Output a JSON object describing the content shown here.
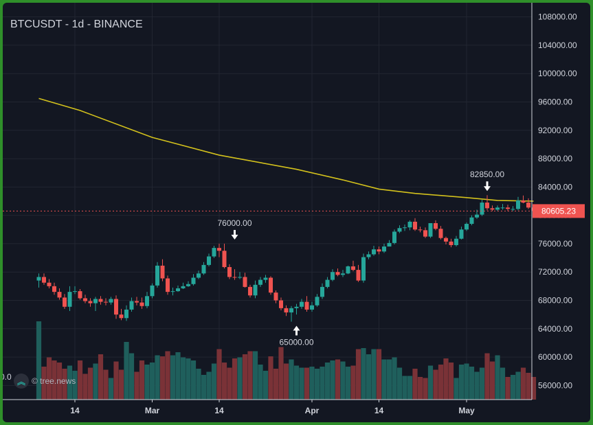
{
  "header": {
    "title": "BTCUSDT - 1d - BINANCE"
  },
  "watermark": {
    "text": "© tree.news",
    "icon": "double-chevron-up-icon"
  },
  "left_clip_text": "0.0",
  "price_badge": {
    "value": "80605.23",
    "color": "#ef5350"
  },
  "colors": {
    "up": "#26a69a",
    "down": "#ef5350",
    "ma": "#d4c21c",
    "background": "#131722",
    "text": "#d1d4dc"
  },
  "chart_data": {
    "type": "candlestick",
    "title": "BTCUSDT - 1d - BINANCE",
    "ylim": [
      54000,
      110000
    ],
    "y_ticks": [
      56000,
      60000,
      64000,
      68000,
      72000,
      76000,
      80000,
      84000,
      88000,
      92000,
      96000,
      100000,
      104000,
      108000
    ],
    "y_tick_labels": [
      "56000.00",
      "60000.00",
      "64000.00",
      "68000.00",
      "72000.00",
      "76000.00",
      "80000.00",
      "84000.00",
      "88000.00",
      "92000.00",
      "96000.00",
      "100000.00",
      "104000.00",
      "108000.00"
    ],
    "x_tick_labels": [
      {
        "label": "14",
        "date": "2025-02-14"
      },
      {
        "label": "Mar",
        "date": "2025-03-01"
      },
      {
        "label": "14",
        "date": "2025-03-14"
      },
      {
        "label": "Apr",
        "date": "2025-04-01"
      },
      {
        "label": "14",
        "date": "2025-04-14"
      },
      {
        "label": "May",
        "date": "2025-05-01"
      }
    ],
    "current_price": 80605.23,
    "annotations": [
      {
        "text": "76000.00",
        "value": 76000,
        "date": "2025-03-17",
        "direction": "down"
      },
      {
        "text": "65000.00",
        "value": 65000,
        "date": "2025-03-29",
        "direction": "up"
      },
      {
        "text": "82850.00",
        "value": 82850,
        "date": "2025-05-05",
        "direction": "down"
      }
    ],
    "series": [
      {
        "name": "",
        "kind": "ohlc",
        "dates": [
          "2025-02-07",
          "2025-02-08",
          "2025-02-09",
          "2025-02-10",
          "2025-02-11",
          "2025-02-12",
          "2025-02-13",
          "2025-02-14",
          "2025-02-15",
          "2025-02-16",
          "2025-02-17",
          "2025-02-18",
          "2025-02-19",
          "2025-02-20",
          "2025-02-21",
          "2025-02-22",
          "2025-02-23",
          "2025-02-24",
          "2025-02-25",
          "2025-02-26",
          "2025-02-27",
          "2025-02-28",
          "2025-03-01",
          "2025-03-02",
          "2025-03-03",
          "2025-03-04",
          "2025-03-05",
          "2025-03-06",
          "2025-03-07",
          "2025-03-08",
          "2025-03-09",
          "2025-03-10",
          "2025-03-11",
          "2025-03-12",
          "2025-03-13",
          "2025-03-14",
          "2025-03-15",
          "2025-03-16",
          "2025-03-17",
          "2025-03-18",
          "2025-03-19",
          "2025-03-20",
          "2025-03-21",
          "2025-03-22",
          "2025-03-23",
          "2025-03-24",
          "2025-03-25",
          "2025-03-26",
          "2025-03-27",
          "2025-03-28",
          "2025-03-29",
          "2025-03-30",
          "2025-03-31",
          "2025-04-01",
          "2025-04-02",
          "2025-04-03",
          "2025-04-04",
          "2025-04-05",
          "2025-04-06",
          "2025-04-07",
          "2025-04-08",
          "2025-04-09",
          "2025-04-10",
          "2025-04-11",
          "2025-04-12",
          "2025-04-13",
          "2025-04-14",
          "2025-04-15",
          "2025-04-16",
          "2025-04-17",
          "2025-04-18",
          "2025-04-19",
          "2025-04-20",
          "2025-04-21",
          "2025-04-22",
          "2025-04-23",
          "2025-04-24",
          "2025-04-25",
          "2025-04-26",
          "2025-04-27",
          "2025-04-28",
          "2025-04-29",
          "2025-04-30",
          "2025-05-01",
          "2025-05-02",
          "2025-05-03",
          "2025-05-04",
          "2025-05-05",
          "2025-05-06",
          "2025-05-07",
          "2025-05-08",
          "2025-05-09",
          "2025-05-10",
          "2025-05-11",
          "2025-05-12",
          "2025-05-13",
          "2025-05-14"
        ],
        "open": [
          70800,
          71300,
          70500,
          70000,
          69200,
          68400,
          67100,
          69200,
          69300,
          68300,
          67900,
          67600,
          68200,
          67800,
          67700,
          68200,
          66000,
          65500,
          66700,
          67900,
          67700,
          67200,
          68600,
          70100,
          72900,
          71100,
          69200,
          69300,
          69700,
          70000,
          70300,
          71200,
          71800,
          73000,
          74200,
          75400,
          75000,
          72700,
          71300,
          71200,
          71300,
          69900,
          68700,
          70200,
          70900,
          71200,
          69100,
          68000,
          66900,
          66300,
          66900,
          67100,
          67800,
          66700,
          67300,
          68500,
          69900,
          70900,
          72000,
          71600,
          71800,
          72800,
          72300,
          70800,
          74100,
          74500,
          75200,
          74900,
          75600,
          76100,
          77700,
          78200,
          78300,
          79100,
          78000,
          77900,
          77000,
          78900,
          78100,
          76800,
          76300,
          75800,
          76700,
          78000,
          78800,
          79700,
          80100,
          81800,
          81000,
          80800,
          81100,
          81100,
          80900,
          80900,
          82100,
          81800,
          81100
        ],
        "high": [
          71800,
          71800,
          71000,
          70500,
          69700,
          68900,
          70000,
          70000,
          69600,
          68800,
          68300,
          68500,
          68600,
          68300,
          68500,
          68700,
          66800,
          67300,
          68400,
          68500,
          68400,
          69200,
          70400,
          73400,
          73800,
          71500,
          69800,
          70100,
          70500,
          70700,
          71700,
          72200,
          73400,
          74600,
          75700,
          76000,
          76000,
          73100,
          72400,
          72000,
          71900,
          70200,
          70800,
          71300,
          71600,
          71400,
          69400,
          68400,
          67300,
          67200,
          67500,
          68200,
          68600,
          67800,
          68900,
          70400,
          71300,
          72400,
          72500,
          72300,
          72900,
          73600,
          73000,
          74600,
          74900,
          75700,
          75600,
          76000,
          76500,
          78000,
          78600,
          78700,
          79300,
          79600,
          78400,
          78300,
          78900,
          79300,
          78500,
          77000,
          76700,
          77100,
          78400,
          79000,
          80000,
          80800,
          82200,
          82850,
          81400,
          81400,
          81600,
          81500,
          81300,
          82600,
          82800,
          82400,
          81500
        ],
        "low": [
          69800,
          70200,
          69700,
          68800,
          68100,
          66800,
          66500,
          68900,
          68100,
          67600,
          67100,
          66500,
          67400,
          67300,
          67400,
          65400,
          65200,
          65100,
          66400,
          67300,
          66800,
          66900,
          68300,
          69800,
          70700,
          68800,
          68700,
          69200,
          69600,
          69900,
          70100,
          71000,
          71600,
          72800,
          74000,
          74100,
          72500,
          71000,
          70900,
          71000,
          69800,
          68400,
          68300,
          69900,
          70500,
          68800,
          67600,
          66600,
          65800,
          65000,
          66000,
          66800,
          66400,
          66400,
          67100,
          68200,
          69700,
          70700,
          71400,
          71300,
          71700,
          72100,
          70600,
          70500,
          73800,
          74300,
          74500,
          74700,
          75600,
          75900,
          77500,
          77800,
          77900,
          77800,
          77600,
          76800,
          76800,
          77900,
          76600,
          75900,
          75500,
          75600,
          76600,
          77800,
          78600,
          79500,
          79900,
          80700,
          80600,
          80600,
          80800,
          80600,
          80600,
          80700,
          81700,
          80900,
          80500
        ],
        "close": [
          71300,
          70500,
          70000,
          69200,
          68400,
          67100,
          69200,
          69300,
          68300,
          67900,
          67600,
          68200,
          67800,
          67700,
          68200,
          66000,
          65500,
          66700,
          67900,
          67700,
          67200,
          68600,
          70100,
          72900,
          71100,
          69200,
          69300,
          69700,
          70000,
          70300,
          71200,
          71800,
          73000,
          74200,
          75400,
          75000,
          72700,
          71300,
          71200,
          71300,
          69900,
          68700,
          70200,
          70900,
          71200,
          69100,
          68000,
          66900,
          66300,
          66900,
          67100,
          67800,
          66700,
          67300,
          68500,
          69900,
          70900,
          72000,
          71600,
          71800,
          72800,
          72300,
          70800,
          74100,
          74500,
          75200,
          74900,
          75600,
          76100,
          77700,
          78200,
          78300,
          79100,
          78000,
          77900,
          77000,
          78900,
          78100,
          76800,
          76300,
          75800,
          76700,
          78000,
          78800,
          79700,
          80100,
          81800,
          81000,
          80800,
          81100,
          81100,
          80900,
          80900,
          82100,
          81800,
          81100,
          80605
        ],
        "volume": [
          0.76,
          0.32,
          0.41,
          0.38,
          0.36,
          0.3,
          0.33,
          0.28,
          0.38,
          0.25,
          0.31,
          0.35,
          0.44,
          0.29,
          0.21,
          0.37,
          0.29,
          0.56,
          0.45,
          0.27,
          0.38,
          0.34,
          0.36,
          0.43,
          0.42,
          0.47,
          0.43,
          0.46,
          0.41,
          0.4,
          0.38,
          0.3,
          0.24,
          0.27,
          0.35,
          0.49,
          0.36,
          0.31,
          0.4,
          0.41,
          0.44,
          0.47,
          0.47,
          0.34,
          0.28,
          0.42,
          0.3,
          0.51,
          0.35,
          0.39,
          0.33,
          0.31,
          0.31,
          0.32,
          0.3,
          0.32,
          0.36,
          0.38,
          0.39,
          0.37,
          0.32,
          0.33,
          0.49,
          0.5,
          0.44,
          0.49,
          0.49,
          0.39,
          0.39,
          0.41,
          0.31,
          0.23,
          0.23,
          0.3,
          0.22,
          0.21,
          0.33,
          0.29,
          0.34,
          0.4,
          0.36,
          0.21,
          0.34,
          0.35,
          0.32,
          0.27,
          0.31,
          0.45,
          0.37,
          0.43,
          0.31,
          0.22,
          0.24,
          0.27,
          0.31,
          0.26,
          0.22
        ]
      },
      {
        "name": "",
        "kind": "moving_average",
        "points": [
          {
            "date": "2025-02-07",
            "value": 96500
          },
          {
            "date": "2025-02-15",
            "value": 94800
          },
          {
            "date": "2025-03-01",
            "value": 91000
          },
          {
            "date": "2025-03-14",
            "value": 88500
          },
          {
            "date": "2025-03-29",
            "value": 86500
          },
          {
            "date": "2025-04-07",
            "value": 85000
          },
          {
            "date": "2025-04-14",
            "value": 83700
          },
          {
            "date": "2025-04-21",
            "value": 83100
          },
          {
            "date": "2025-05-01",
            "value": 82500
          },
          {
            "date": "2025-05-07",
            "value": 82100
          },
          {
            "date": "2025-05-14",
            "value": 82000
          }
        ]
      }
    ],
    "grid": true
  }
}
